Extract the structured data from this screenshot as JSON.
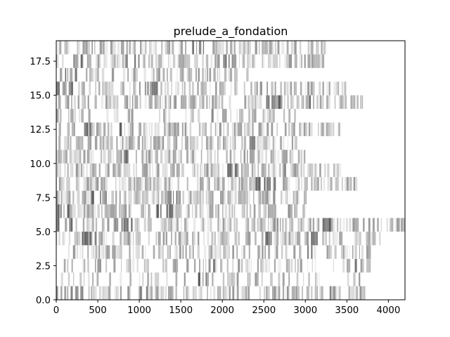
{
  "chart_data": {
    "type": "heatmap",
    "title": "prelude_a_fondation",
    "xlabel": "",
    "ylabel": "",
    "xlim": [
      0,
      4200
    ],
    "ylim": [
      0,
      19
    ],
    "grid": false,
    "colormap": "gray_r",
    "cell_height": 1,
    "x_ticks": [
      "0",
      "500",
      "1000",
      "1500",
      "2000",
      "2500",
      "3000",
      "3500",
      "4000"
    ],
    "y_ticks": [
      "0.0",
      "2.5",
      "5.0",
      "7.5",
      "10.0",
      "12.5",
      "15.0",
      "17.5"
    ],
    "rows": [
      {
        "row": 0,
        "x_end": 3720,
        "density": 0.55,
        "heavy": [
          [
            0,
            300
          ],
          [
            1000,
            1100
          ],
          [
            3200,
            3300
          ]
        ]
      },
      {
        "row": 1,
        "x_end": 3720,
        "density": 0.25,
        "heavy": [
          [
            1700,
            1800
          ]
        ]
      },
      {
        "row": 2,
        "x_end": 3830,
        "density": 0.35,
        "heavy": [
          [
            1800,
            1900
          ],
          [
            3500,
            3600
          ]
        ]
      },
      {
        "row": 3,
        "x_end": 3820,
        "density": 0.45,
        "heavy": [
          [
            2500,
            2600
          ],
          [
            3000,
            3100
          ]
        ]
      },
      {
        "row": 4,
        "x_end": 3900,
        "density": 0.65,
        "heavy": [
          [
            300,
            500
          ],
          [
            2400,
            2600
          ],
          [
            3000,
            3200
          ]
        ]
      },
      {
        "row": 5,
        "x_end": 4200,
        "density": 0.6,
        "heavy": [
          [
            0,
            200
          ],
          [
            700,
            900
          ],
          [
            2600,
            2700
          ],
          [
            3200,
            3300
          ]
        ]
      },
      {
        "row": 6,
        "x_end": 3050,
        "density": 0.6,
        "heavy": [
          [
            0,
            150
          ],
          [
            1200,
            1400
          ],
          [
            2700,
            2800
          ]
        ]
      },
      {
        "row": 7,
        "x_end": 3080,
        "density": 0.65,
        "heavy": [
          [
            400,
            600
          ],
          [
            1300,
            1500
          ],
          [
            2600,
            2700
          ]
        ]
      },
      {
        "row": 8,
        "x_end": 3620,
        "density": 0.6,
        "heavy": [
          [
            2400,
            2700
          ]
        ]
      },
      {
        "row": 9,
        "x_end": 3420,
        "density": 0.65,
        "heavy": [
          [
            2000,
            2200
          ],
          [
            2700,
            2800
          ]
        ]
      },
      {
        "row": 10,
        "x_end": 3000,
        "density": 0.55,
        "heavy": [
          [
            800,
            1000
          ],
          [
            2200,
            2300
          ]
        ]
      },
      {
        "row": 11,
        "x_end": 2930,
        "density": 0.55,
        "heavy": [
          [
            2300,
            2400
          ]
        ]
      },
      {
        "row": 12,
        "x_end": 3420,
        "density": 0.5,
        "heavy": [
          [
            200,
            400
          ],
          [
            700,
            800
          ]
        ]
      },
      {
        "row": 13,
        "x_end": 2950,
        "density": 0.3,
        "heavy": [
          [
            1800,
            1900
          ]
        ]
      },
      {
        "row": 14,
        "x_end": 3700,
        "density": 0.5,
        "heavy": [
          [
            2500,
            2700
          ],
          [
            3000,
            3100
          ]
        ]
      },
      {
        "row": 15,
        "x_end": 3470,
        "density": 0.55,
        "heavy": [
          [
            0,
            200
          ],
          [
            1000,
            1200
          ]
        ]
      },
      {
        "row": 16,
        "x_end": 2300,
        "density": 0.45,
        "heavy": [
          [
            100,
            300
          ]
        ]
      },
      {
        "row": 17,
        "x_end": 3210,
        "density": 0.55,
        "heavy": [
          [
            100,
            300
          ],
          [
            800,
            1000
          ],
          [
            2000,
            2200
          ]
        ]
      },
      {
        "row": 18,
        "x_end": 3250,
        "density": 0.5,
        "heavy": [
          [
            400,
            500
          ],
          [
            1600,
            1800
          ]
        ]
      }
    ]
  }
}
